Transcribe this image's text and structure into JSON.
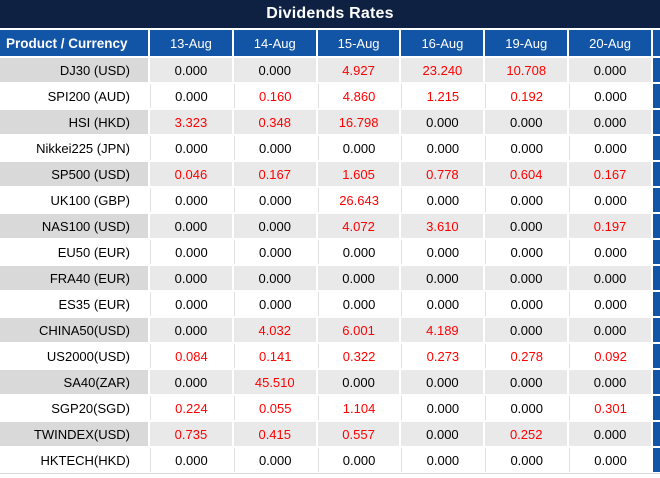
{
  "title": "Dividends Rates",
  "chart_data": {
    "type": "table",
    "title": "Dividends Rates",
    "columns": [
      "Product / Currency",
      "13-Aug",
      "14-Aug",
      "15-Aug",
      "16-Aug",
      "19-Aug",
      "20-Aug"
    ],
    "rows": [
      {
        "product": "DJ30 (USD)",
        "values": [
          "0.000",
          "0.000",
          "4.927",
          "23.240",
          "10.708",
          "0.000"
        ]
      },
      {
        "product": "SPI200 (AUD)",
        "values": [
          "0.000",
          "0.160",
          "4.860",
          "1.215",
          "0.192",
          "0.000"
        ]
      },
      {
        "product": "HSI (HKD)",
        "values": [
          "3.323",
          "0.348",
          "16.798",
          "0.000",
          "0.000",
          "0.000"
        ]
      },
      {
        "product": "Nikkei225 (JPN)",
        "values": [
          "0.000",
          "0.000",
          "0.000",
          "0.000",
          "0.000",
          "0.000"
        ]
      },
      {
        "product": "SP500 (USD)",
        "values": [
          "0.046",
          "0.167",
          "1.605",
          "0.778",
          "0.604",
          "0.167"
        ]
      },
      {
        "product": "UK100 (GBP)",
        "values": [
          "0.000",
          "0.000",
          "26.643",
          "0.000",
          "0.000",
          "0.000"
        ]
      },
      {
        "product": "NAS100 (USD)",
        "values": [
          "0.000",
          "0.000",
          "4.072",
          "3.610",
          "0.000",
          "0.197"
        ]
      },
      {
        "product": "EU50 (EUR)",
        "values": [
          "0.000",
          "0.000",
          "0.000",
          "0.000",
          "0.000",
          "0.000"
        ]
      },
      {
        "product": "FRA40 (EUR)",
        "values": [
          "0.000",
          "0.000",
          "0.000",
          "0.000",
          "0.000",
          "0.000"
        ]
      },
      {
        "product": "ES35 (EUR)",
        "values": [
          "0.000",
          "0.000",
          "0.000",
          "0.000",
          "0.000",
          "0.000"
        ]
      },
      {
        "product": "CHINA50(USD)",
        "values": [
          "0.000",
          "4.032",
          "6.001",
          "4.189",
          "0.000",
          "0.000"
        ]
      },
      {
        "product": "US2000(USD)",
        "values": [
          "0.084",
          "0.141",
          "0.322",
          "0.273",
          "0.278",
          "0.092"
        ]
      },
      {
        "product": "SA40(ZAR)",
        "values": [
          "0.000",
          "45.510",
          "0.000",
          "0.000",
          "0.000",
          "0.000"
        ]
      },
      {
        "product": "SGP20(SGD)",
        "values": [
          "0.224",
          "0.055",
          "1.104",
          "0.000",
          "0.000",
          "0.301"
        ]
      },
      {
        "product": "TWINDEX(USD)",
        "values": [
          "0.735",
          "0.415",
          "0.557",
          "0.000",
          "0.252",
          "0.000"
        ]
      },
      {
        "product": "HKTECH(HKD)",
        "values": [
          "0.000",
          "0.000",
          "0.000",
          "0.000",
          "0.000",
          "0.000"
        ]
      }
    ],
    "legend_rule": "non-zero dividend values rendered in red, zero values in black",
    "layout": "alternating gray/white row stripes starting gray on first data row"
  },
  "colors": {
    "title_bg": "#0f2142",
    "header_bg": "#1254a6",
    "gray_product_bg": "#d9d9d9",
    "gray_data_bg": "#e9e9e9",
    "separator": "#e0e0e0",
    "separator_bottom": "#d9d9d9",
    "pos_value": "#ff0000",
    "zero_value": "#000000",
    "header_text": "#ffffff"
  }
}
